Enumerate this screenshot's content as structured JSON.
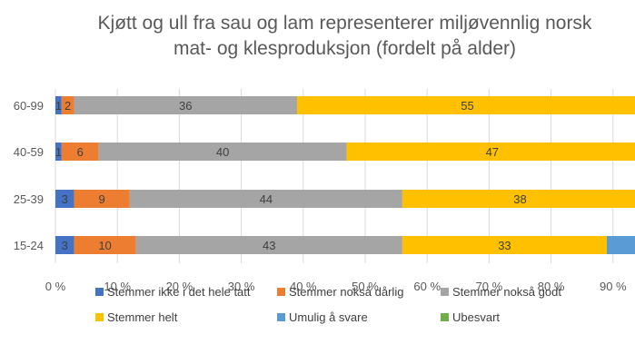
{
  "chart_data": {
    "type": "bar",
    "orientation": "horizontal",
    "stacked": "percent",
    "title_lines": [
      "Kjøtt og ull fra sau og lam representerer miljøvennlig norsk",
      "mat- og klesproduksjon (fordelt på alder)"
    ],
    "xlabel": "",
    "ylabel": "",
    "categories": [
      "60-99",
      "40-59",
      "25-39",
      "15-24"
    ],
    "x_ticks": [
      "0 %",
      "10 %",
      "20 %",
      "30 %",
      "40 %",
      "50 %",
      "60 %",
      "70 %",
      "80 %",
      "90 %"
    ],
    "xlim": [
      0,
      100
    ],
    "grid": true,
    "legend_position": "bottom",
    "series": [
      {
        "name": "Stemmer ikke i det hele tatt",
        "color": "#4472C4",
        "values": [
          1,
          1,
          3,
          3
        ],
        "labels": [
          "1",
          "1",
          "3",
          "3"
        ]
      },
      {
        "name": "Stemmer nokså dårlig",
        "color": "#ED7D31",
        "values": [
          2,
          6,
          9,
          10
        ],
        "labels": [
          "2",
          "6",
          "9",
          "10"
        ]
      },
      {
        "name": "Stemmer nokså godt",
        "color": "#A5A5A5",
        "values": [
          36,
          40,
          44,
          43
        ],
        "labels": [
          "36",
          "40",
          "44",
          "43"
        ]
      },
      {
        "name": "Stemmer helt",
        "color": "#FFC000",
        "values": [
          55,
          47,
          38,
          33
        ],
        "labels": [
          "55",
          "47",
          "38",
          "33"
        ]
      },
      {
        "name": "Umulig å svare",
        "color": "#5B9BD5",
        "values": [
          1,
          1,
          1,
          5
        ],
        "labels": [
          "",
          "",
          "",
          ""
        ]
      },
      {
        "name": "Ubesvart",
        "color": "#70AD47",
        "values": [
          0,
          0,
          0,
          0
        ],
        "labels": [
          "",
          "",
          "",
          ""
        ]
      }
    ]
  }
}
